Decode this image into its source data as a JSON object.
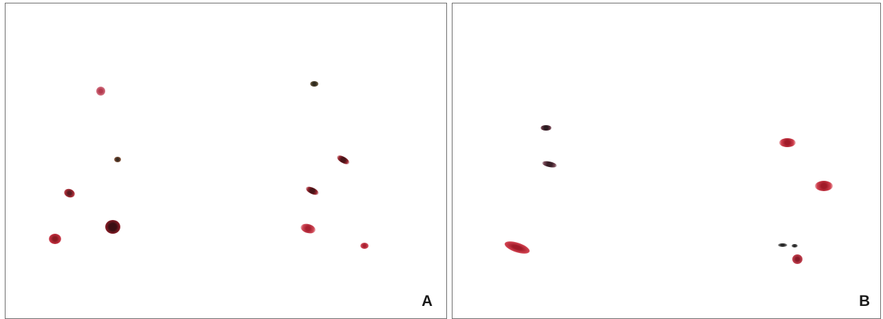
{
  "panels": [
    {
      "id": "A",
      "label": "A"
    },
    {
      "id": "B",
      "label": "B"
    }
  ],
  "colors": {
    "stain_red": "#c0303a",
    "stain_dark": "#4a1e22",
    "stain_pink": "#c86070",
    "background": "#ffffff",
    "border": "#6b6b6b"
  }
}
